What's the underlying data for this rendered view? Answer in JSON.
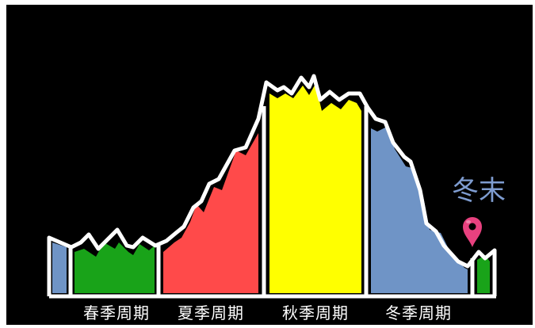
{
  "background_color": "#000000",
  "frame_color": "#ffffff",
  "line_color": "#ffffff",
  "seasons": [
    {
      "label": "春季周期",
      "color": "#19a319"
    },
    {
      "label": "夏季周期",
      "color": "#ff4a4a"
    },
    {
      "label": "秋季周期",
      "color": "#ffff00"
    },
    {
      "label": "冬季周期",
      "color": "#6f94c6"
    }
  ],
  "marker": {
    "label": "冬末",
    "icon": "map-pin-icon",
    "color": "#e8417f"
  }
}
